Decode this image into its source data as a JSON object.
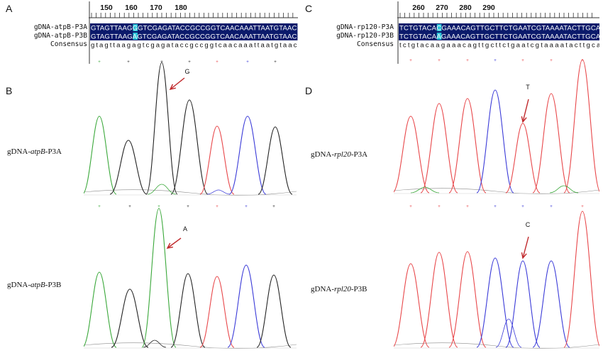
{
  "panels": {
    "A": {
      "letter": "A",
      "ruler_ticks": [
        "150",
        "160",
        "170",
        "180"
      ],
      "rows": [
        {
          "name": "gDNA-atpB-P3A",
          "seq": "GTAGTTAAGGGTCGAGATACCGCCGGTCAACAAATTAATGTAAC"
        },
        {
          "name": "gDNA-atpB-P3B",
          "seq": "GTAGTTAAGAGTCGAGATACCGCCGGTCAACAAATTAATGTAAC"
        }
      ],
      "consensus_label": "Consensus",
      "consensus": "gtagttaagagtcgagataccgccggtcaacaaattaatgtaac",
      "highlight_index": 9
    },
    "B": {
      "letter": "B",
      "traces": [
        {
          "prefix": "gDNA-",
          "gene": "atpB",
          "suffix": "-P3A",
          "base_call": "G",
          "colors": [
            "#3aa83a",
            "#222222",
            "#222222",
            "#222222",
            "#e8474a",
            "#3a3ad8",
            "#222222"
          ]
        },
        {
          "prefix": "gDNA-",
          "gene": "atpB",
          "suffix": "-P3B",
          "base_call": "A",
          "colors": [
            "#3aa83a",
            "#222222",
            "#3aa83a",
            "#222222",
            "#e8474a",
            "#3a3ad8",
            "#222222"
          ]
        }
      ]
    },
    "C": {
      "letter": "C",
      "ruler_ticks": [
        "260",
        "270",
        "280",
        "290"
      ],
      "rows": [
        {
          "name": "gDNA-rp120-P3A",
          "seq": "TCTGTACACGAAACAGTTGCTTCTGAATCGTAAAATACTTGCAC"
        },
        {
          "name": "gDNA-rp120-P3B",
          "seq": "TCTGTACAAGAAACAGTTGCTTCTGAATCGTAAAATACTTGCAC"
        }
      ],
      "consensus_label": "Consensus",
      "consensus": "tctgtacaagaaacagttgcttctgaatcgtaaaatacttgcac",
      "highlight_index": 8
    },
    "D": {
      "letter": "D",
      "traces": [
        {
          "prefix": "gDNA-",
          "gene": "rpl20",
          "suffix": "-P3A",
          "base_call": "T",
          "colors": [
            "#e8474a",
            "#e8474a",
            "#e8474a",
            "#3a3ad8",
            "#e8474a",
            "#e8474a",
            "#e8474a",
            "#222222"
          ]
        },
        {
          "prefix": "gDNA-",
          "gene": "rpl20",
          "suffix": "-P3B",
          "base_call": "C",
          "colors": [
            "#e8474a",
            "#e8474a",
            "#e8474a",
            "#3a3ad8",
            "#3a3ad8",
            "#3a3ad8",
            "#e8474a",
            "#222222"
          ]
        }
      ]
    }
  },
  "colors": {
    "seq_bg": "#0b1a6b",
    "seq_text": "#ffffff",
    "highlight": "#2bc4d8",
    "arrow": "#c0282b"
  }
}
